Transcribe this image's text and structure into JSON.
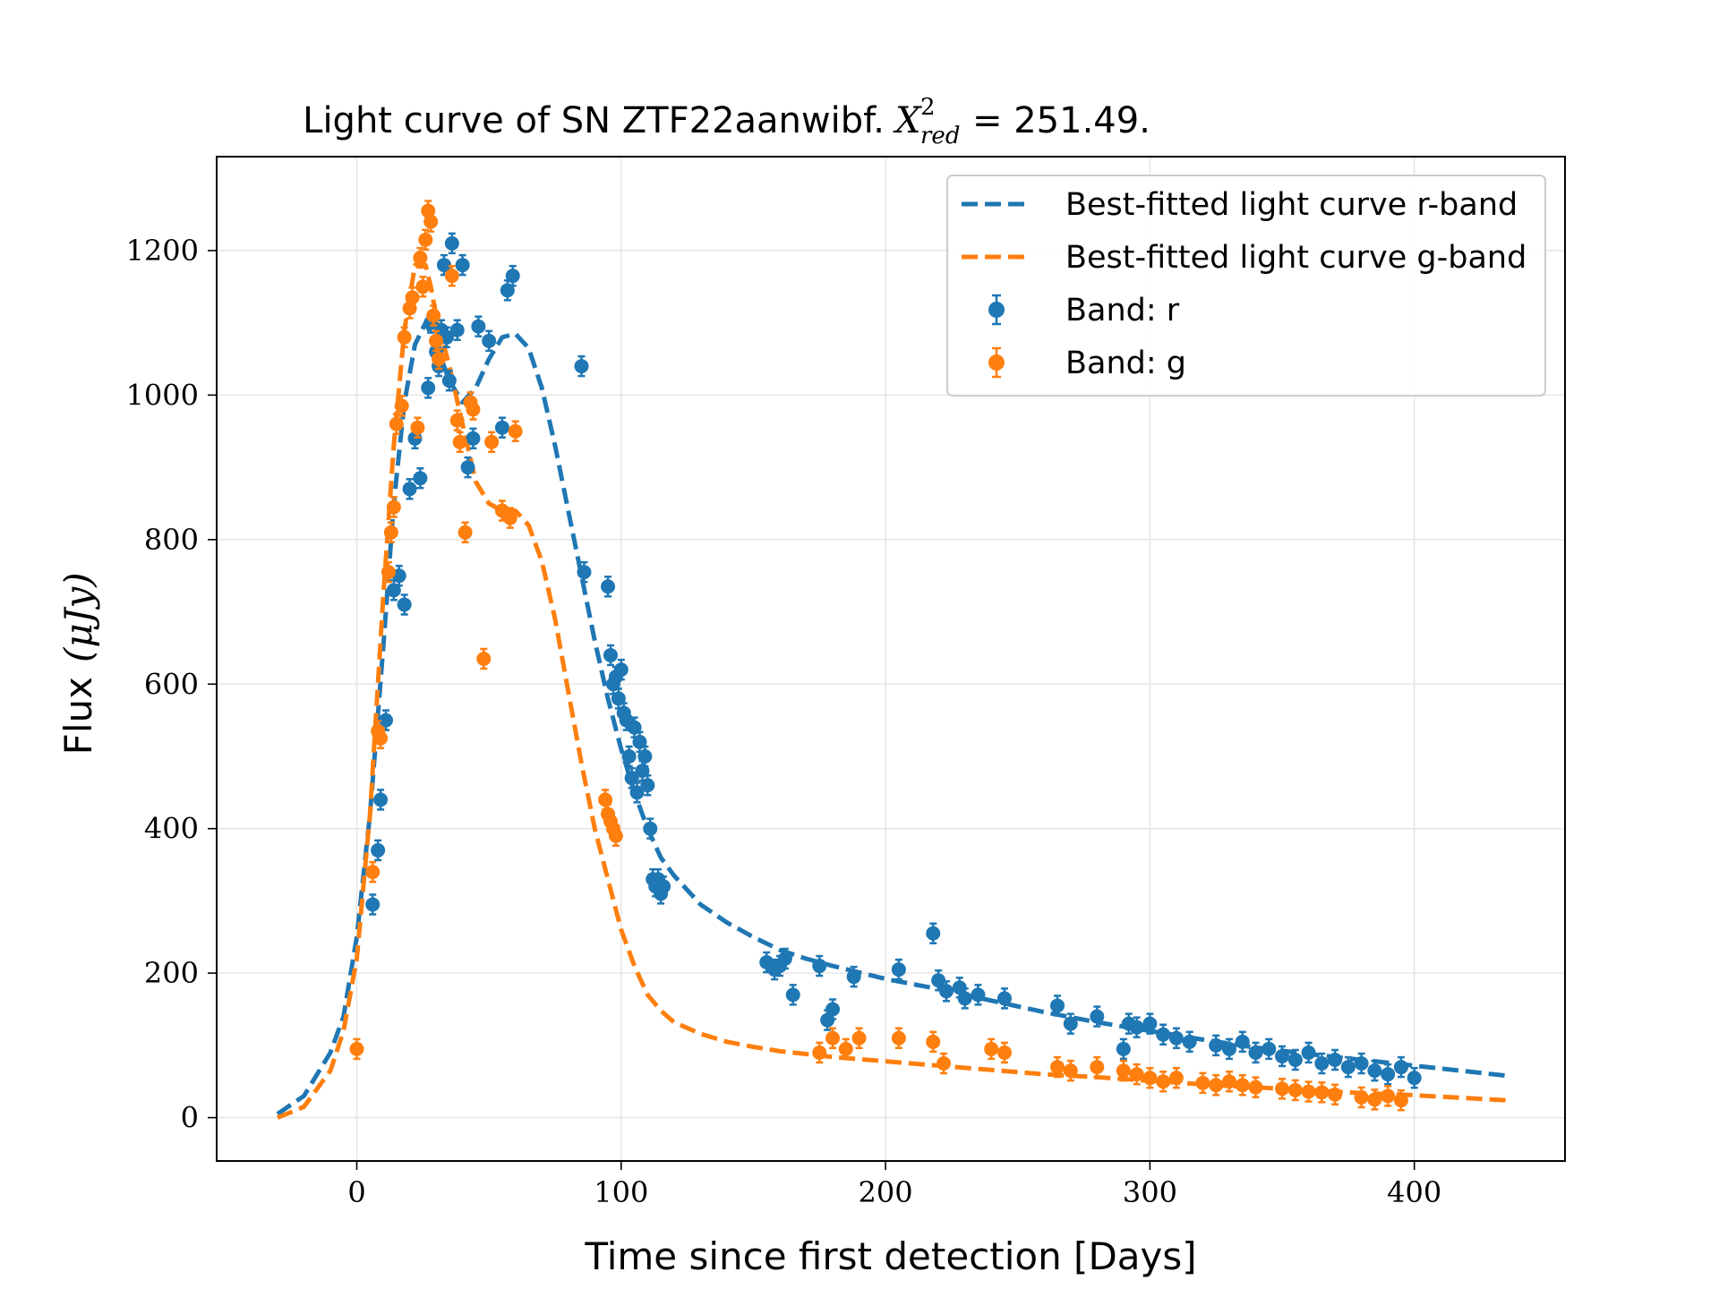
{
  "chart_data": {
    "type": "scatter",
    "title": "Light curve of SN ZTF22aanwibf.",
    "title_math": "X",
    "title_sup": "2",
    "title_sub": "red",
    "title_value": "= 251.49.",
    "xlabel": "Time since first detection [Days]",
    "ylabel": "Flux",
    "ylabel_units": "(μJy)",
    "xlim": [
      -53,
      457
    ],
    "ylim": [
      -60,
      1330
    ],
    "xticks": [
      0,
      100,
      200,
      300,
      400
    ],
    "yticks": [
      0,
      200,
      400,
      600,
      800,
      1000,
      1200
    ],
    "grid": true,
    "legend_position": "top-right",
    "legend": [
      {
        "label": "Best-fitted light curve r-band",
        "kind": "line",
        "color": "#1f77b4"
      },
      {
        "label": "Best-fitted light curve g-band",
        "kind": "line",
        "color": "#ff7f0e"
      },
      {
        "label": "Band: r",
        "kind": "errorbar",
        "color": "#1f77b4"
      },
      {
        "label": "Band: g",
        "kind": "errorbar",
        "color": "#ff7f0e"
      }
    ],
    "fit_curves": [
      {
        "band": "r",
        "color": "#1f77b4",
        "x": [
          -30,
          -20,
          -10,
          -5,
          0,
          5,
          10,
          14,
          18,
          22,
          26,
          30,
          35,
          40,
          45,
          50,
          55,
          60,
          65,
          70,
          75,
          80,
          85,
          90,
          95,
          100,
          105,
          110,
          115,
          120,
          130,
          140,
          150,
          160,
          170,
          180,
          200,
          220,
          240,
          260,
          280,
          300,
          320,
          340,
          360,
          380,
          400,
          420,
          435
        ],
        "y": [
          5,
          30,
          90,
          140,
          250,
          420,
          650,
          850,
          990,
          1070,
          1100,
          1070,
          1020,
          990,
          1010,
          1050,
          1080,
          1085,
          1065,
          1010,
          930,
          840,
          750,
          660,
          580,
          510,
          450,
          400,
          360,
          335,
          295,
          270,
          250,
          232,
          220,
          210,
          192,
          178,
          162,
          146,
          132,
          120,
          108,
          97,
          88,
          80,
          72,
          64,
          58
        ]
      },
      {
        "band": "g",
        "color": "#ff7f0e",
        "x": [
          -30,
          -20,
          -10,
          -5,
          0,
          5,
          10,
          14,
          18,
          22,
          26,
          28,
          30,
          35,
          40,
          45,
          50,
          55,
          60,
          65,
          70,
          75,
          80,
          85,
          90,
          95,
          100,
          105,
          110,
          115,
          120,
          130,
          140,
          150,
          160,
          170,
          180,
          200,
          220,
          240,
          260,
          280,
          300,
          320,
          340,
          360,
          380,
          400,
          420,
          435
        ],
        "y": [
          0,
          15,
          65,
          120,
          220,
          420,
          720,
          930,
          1090,
          1180,
          1180,
          1150,
          1110,
          1040,
          960,
          880,
          850,
          840,
          840,
          820,
          770,
          690,
          590,
          490,
          400,
          330,
          260,
          210,
          170,
          148,
          132,
          116,
          105,
          98,
          92,
          88,
          84,
          78,
          72,
          66,
          60,
          56,
          51,
          46,
          42,
          38,
          34,
          31,
          27,
          24
        ]
      }
    ],
    "series": [
      {
        "name": "Band: r",
        "color": "#1f77b4",
        "x": [
          6,
          8,
          9,
          11,
          14,
          16,
          18,
          20,
          22,
          24,
          27,
          28,
          30,
          31,
          32,
          33,
          34,
          35,
          36,
          38,
          40,
          42,
          44,
          46,
          50,
          55,
          57,
          59,
          85,
          86,
          95,
          96,
          97,
          98,
          99,
          100,
          101,
          102,
          103,
          104,
          105,
          106,
          107,
          108,
          109,
          110,
          111,
          112,
          113,
          114,
          115,
          116,
          155,
          158,
          160,
          162,
          165,
          175,
          178,
          180,
          188,
          205,
          218,
          220,
          223,
          228,
          230,
          235,
          245,
          265,
          270,
          280,
          290,
          292,
          295,
          300,
          305,
          310,
          315,
          325,
          330,
          335,
          340,
          345,
          350,
          355,
          360,
          365,
          370,
          375,
          380,
          385,
          390,
          395,
          400
        ],
        "y": [
          295,
          370,
          440,
          550,
          730,
          750,
          710,
          870,
          940,
          885,
          1010,
          1100,
          1060,
          1040,
          1090,
          1180,
          1080,
          1020,
          1210,
          1090,
          1180,
          900,
          940,
          1095,
          1075,
          955,
          1145,
          1165,
          1040,
          755,
          735,
          640,
          600,
          610,
          580,
          620,
          560,
          550,
          500,
          470,
          540,
          450,
          520,
          480,
          500,
          460,
          400,
          330,
          320,
          330,
          310,
          320,
          215,
          205,
          210,
          220,
          170,
          210,
          135,
          150,
          195,
          205,
          255,
          190,
          175,
          180,
          165,
          170,
          165,
          155,
          130,
          140,
          95,
          130,
          125,
          130,
          115,
          110,
          105,
          100,
          95,
          105,
          90,
          95,
          85,
          80,
          90,
          75,
          80,
          70,
          75,
          65,
          60,
          70,
          55
        ]
      },
      {
        "name": "Band: g",
        "color": "#ff7f0e",
        "x": [
          0,
          6,
          8,
          9,
          12,
          13,
          14,
          15,
          17,
          18,
          20,
          21,
          23,
          24,
          25,
          26,
          27,
          28,
          29,
          30,
          31,
          36,
          38,
          39,
          41,
          43,
          44,
          48,
          51,
          55,
          58,
          60,
          94,
          95,
          96,
          97,
          98,
          175,
          180,
          185,
          190,
          205,
          218,
          222,
          240,
          245,
          265,
          270,
          280,
          290,
          295,
          300,
          305,
          310,
          320,
          325,
          330,
          335,
          340,
          350,
          355,
          360,
          365,
          370,
          380,
          385,
          390,
          395
        ],
        "y": [
          95,
          340,
          535,
          525,
          755,
          810,
          845,
          960,
          985,
          1080,
          1120,
          1135,
          955,
          1190,
          1150,
          1215,
          1255,
          1240,
          1110,
          1075,
          1050,
          1165,
          965,
          935,
          810,
          990,
          980,
          635,
          935,
          840,
          830,
          950,
          440,
          420,
          410,
          400,
          390,
          90,
          110,
          95,
          110,
          110,
          105,
          75,
          95,
          90,
          70,
          65,
          70,
          65,
          60,
          55,
          50,
          55,
          48,
          45,
          50,
          45,
          42,
          40,
          38,
          36,
          35,
          32,
          28,
          25,
          30,
          24
        ]
      }
    ]
  }
}
